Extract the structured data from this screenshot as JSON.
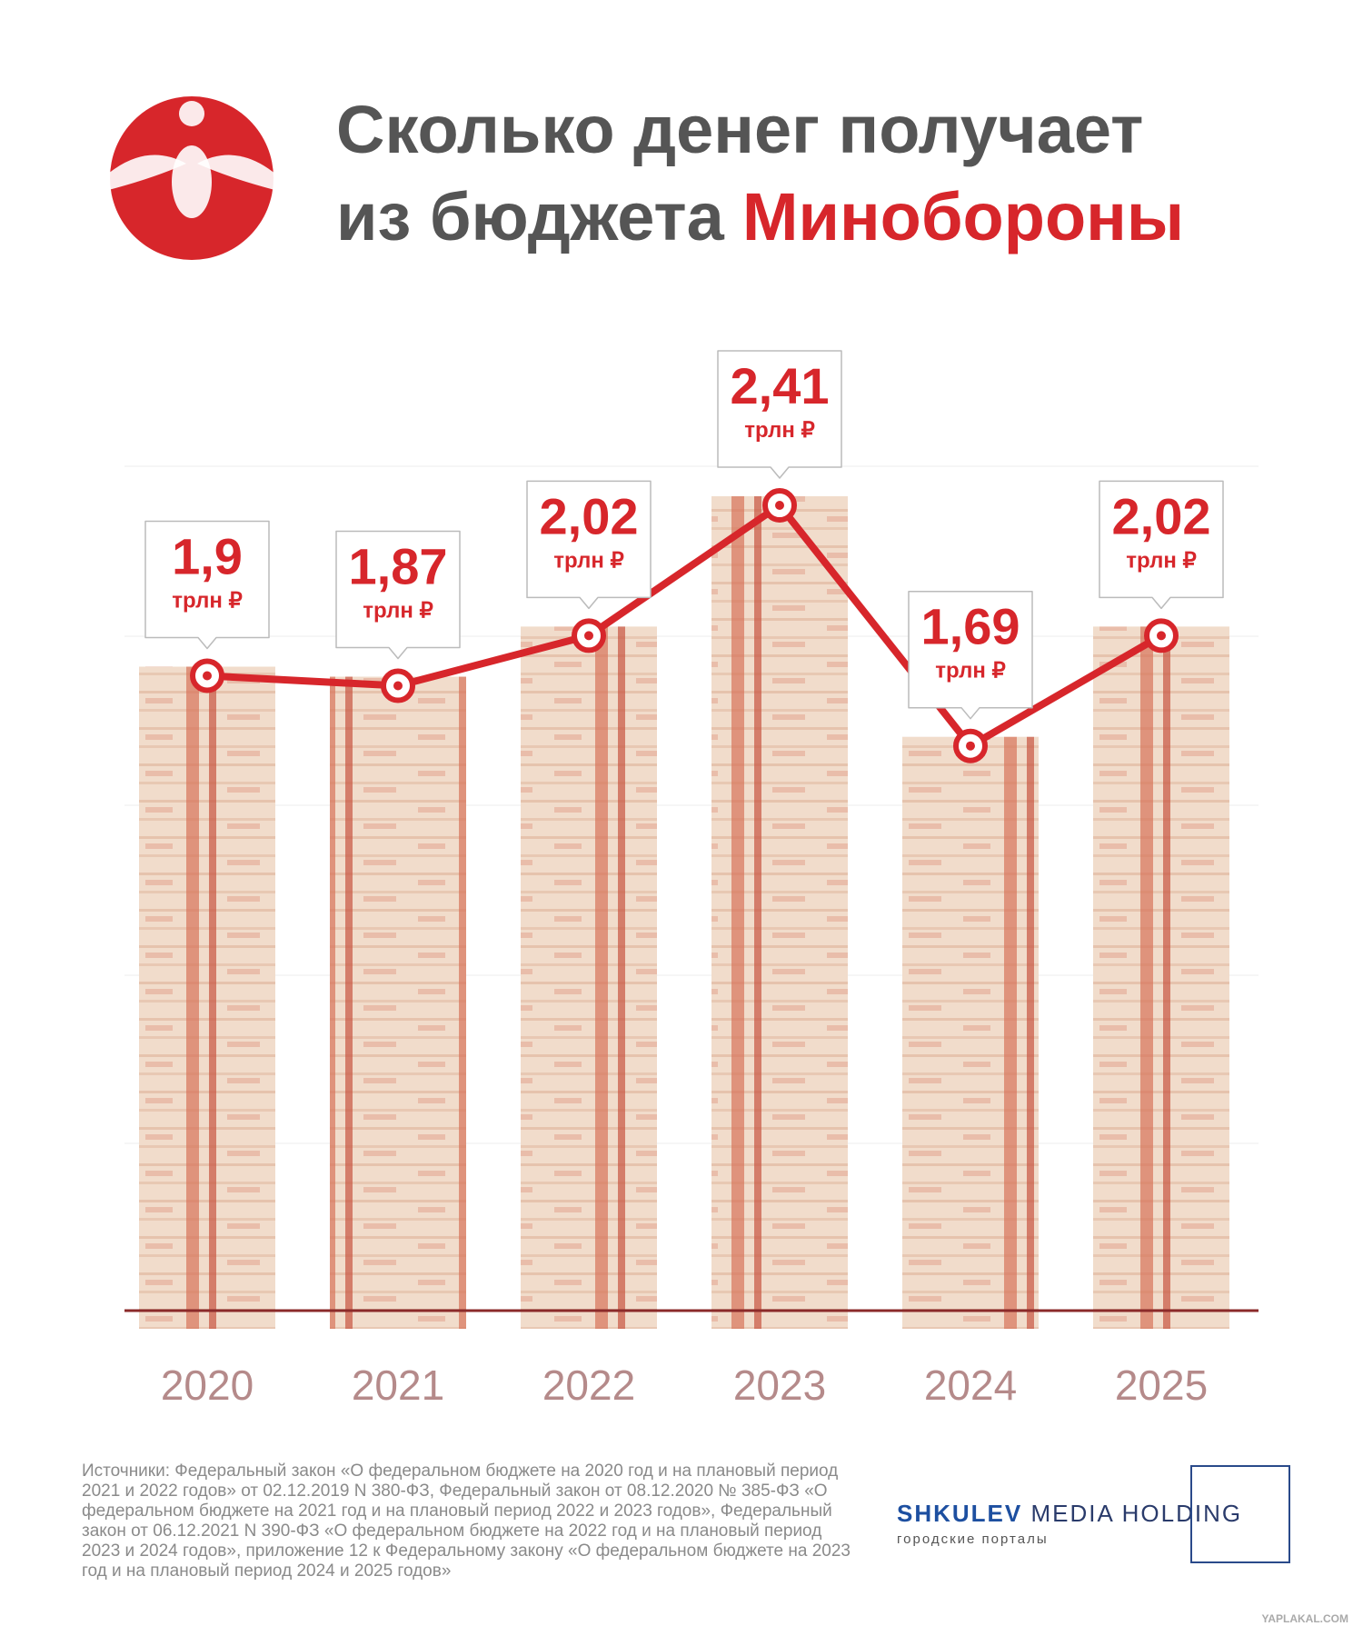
{
  "header": {
    "title_line1": "Сколько денег получает",
    "title_line2": "из бюджета",
    "title_highlight": "Минобороны"
  },
  "chart_data": {
    "type": "line",
    "categories": [
      "2020",
      "2021",
      "2022",
      "2023",
      "2024",
      "2025"
    ],
    "values": [
      1.9,
      1.87,
      2.02,
      2.41,
      1.69,
      2.02
    ],
    "value_labels": [
      "1,9",
      "1,87",
      "2,02",
      "2,41",
      "1,69",
      "2,02"
    ],
    "unit_label": "трлн ₽",
    "color": "#d7262b"
  },
  "footer": {
    "sources": "Источники: Федеральный закон «О федеральном бюджете на 2020 год и на плановый период 2021 и 2022 годов» от 02.12.2019 N 380-ФЗ, Федеральный закон от 08.12.2020 № 385-ФЗ «О федеральном бюджете на 2021 год и на плановый период 2022 и 2023 годов», Федеральный закон от 06.12.2021 N 390-ФЗ «О федеральном бюджете на 2022 год и на плановый период 2023 и 2024 годов», приложение 12 к Федеральному закону «О федеральном бюджете на 2023 год и на плановый период 2024 и 2025 годов»",
    "brand": "SHKULEV",
    "brand_rest": "MEDIA HOLDING",
    "brand_sub": "городские порталы"
  },
  "watermark": "YAPLAKAL.COM"
}
